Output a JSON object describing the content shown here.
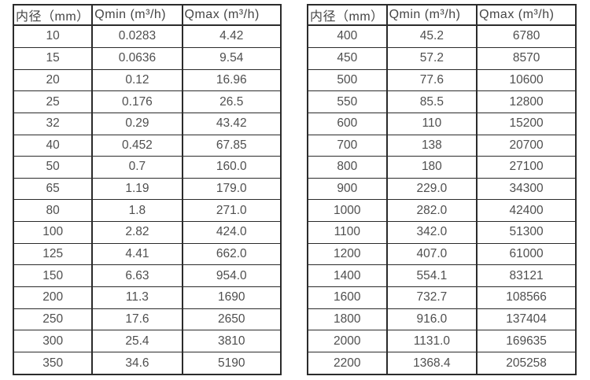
{
  "colors": {
    "background": "#ffffff",
    "border": "#2b2b2b",
    "header_text": "#454545",
    "cell_text": "#4f4f4f"
  },
  "tables": [
    {
      "name": "flow-rate-table-small-diameters",
      "headers": [
        "内径（mm）",
        "Qmin (m³/h)",
        "Qmax (m³/h)"
      ],
      "rows": [
        [
          "10",
          "0.0283",
          "4.42"
        ],
        [
          "15",
          "0.0636",
          "9.54"
        ],
        [
          "20",
          "0.12",
          "16.96"
        ],
        [
          "25",
          "0.176",
          "26.5"
        ],
        [
          "32",
          "0.29",
          "43.42"
        ],
        [
          "40",
          "0.452",
          "67.85"
        ],
        [
          "50",
          "0.7",
          "160.0"
        ],
        [
          "65",
          "1.19",
          "179.0"
        ],
        [
          "80",
          "1.8",
          "271.0"
        ],
        [
          "100",
          "2.82",
          "424.0"
        ],
        [
          "125",
          "4.41",
          "662.0"
        ],
        [
          "150",
          "6.63",
          "954.0"
        ],
        [
          "200",
          "11.3",
          "1690"
        ],
        [
          "250",
          "17.6",
          "2650"
        ],
        [
          "300",
          "25.4",
          "3810"
        ],
        [
          "350",
          "34.6",
          "5190"
        ]
      ]
    },
    {
      "name": "flow-rate-table-large-diameters",
      "headers": [
        "内径（mm）",
        "Qmin (m³/h)",
        "Qmax (m³/h)"
      ],
      "rows": [
        [
          "400",
          "45.2",
          "6780"
        ],
        [
          "450",
          "57.2",
          "8570"
        ],
        [
          "500",
          "77.6",
          "10600"
        ],
        [
          "550",
          "85.5",
          "12800"
        ],
        [
          "600",
          "110",
          "15200"
        ],
        [
          "700",
          "138",
          "20700"
        ],
        [
          "800",
          "180",
          "27100"
        ],
        [
          "900",
          "229.0",
          "34300"
        ],
        [
          "1000",
          "282.0",
          "42400"
        ],
        [
          "1100",
          "342.0",
          "51300"
        ],
        [
          "1200",
          "407.0",
          "61000"
        ],
        [
          "1400",
          "554.1",
          "83121"
        ],
        [
          "1600",
          "732.7",
          "108566"
        ],
        [
          "1800",
          "916.0",
          "137404"
        ],
        [
          "2000",
          "1131.0",
          "169635"
        ],
        [
          "2200",
          "1368.4",
          "205258"
        ]
      ]
    }
  ]
}
